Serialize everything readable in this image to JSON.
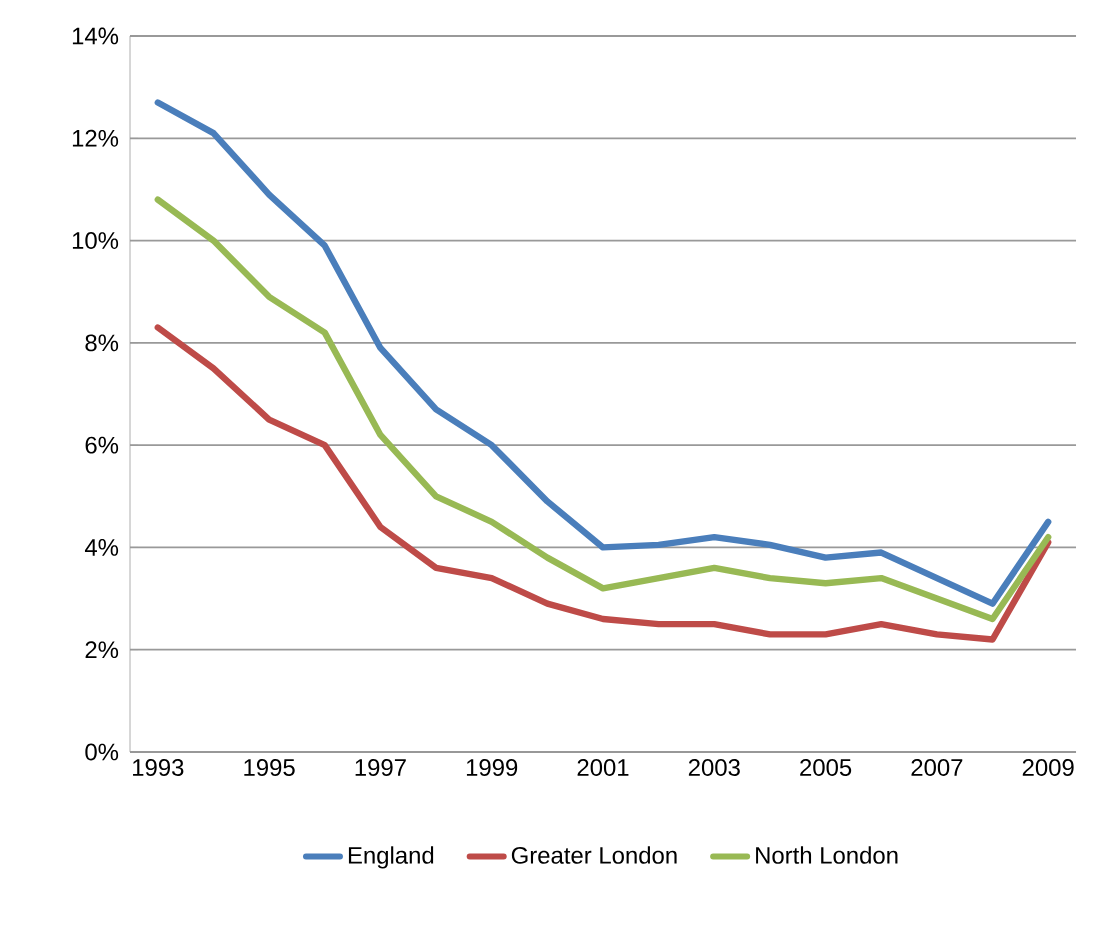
{
  "chart_data": {
    "type": "line",
    "categories": [
      "1993",
      null,
      "1995",
      null,
      "1997",
      null,
      "1999",
      null,
      "2001",
      null,
      "2003",
      null,
      "2005",
      null,
      "2007",
      null,
      "2009"
    ],
    "series": [
      {
        "name": "England",
        "color": "#4a7ebb",
        "values": [
          12.7,
          12.1,
          10.9,
          9.9,
          7.9,
          6.7,
          6.0,
          4.9,
          4.0,
          4.05,
          4.2,
          4.05,
          3.8,
          3.9,
          3.4,
          2.9,
          4.5
        ]
      },
      {
        "name": "Greater London",
        "color": "#be4b48",
        "values": [
          8.3,
          7.5,
          6.5,
          6.0,
          4.4,
          3.6,
          3.4,
          2.9,
          2.6,
          2.5,
          2.5,
          2.3,
          2.3,
          2.5,
          2.3,
          2.2,
          4.1
        ]
      },
      {
        "name": "North London",
        "color": "#98b954",
        "values": [
          10.8,
          10.0,
          8.9,
          8.2,
          6.2,
          5.0,
          4.5,
          3.8,
          3.2,
          3.4,
          3.6,
          3.4,
          3.3,
          3.4,
          3.0,
          2.6,
          4.2
        ]
      }
    ],
    "ylim": [
      0,
      14
    ],
    "yticks": [
      {
        "value": 0,
        "label": "0%"
      },
      {
        "value": 2,
        "label": "2%"
      },
      {
        "value": 4,
        "label": "4%"
      },
      {
        "value": 6,
        "label": "6%"
      },
      {
        "value": 8,
        "label": "8%"
      },
      {
        "value": 10,
        "label": "10%"
      },
      {
        "value": 12,
        "label": "12%"
      },
      {
        "value": 14,
        "label": "14%"
      }
    ],
    "grid": "y",
    "legend": "bottom",
    "marker": "none",
    "line_style": "solid"
  }
}
